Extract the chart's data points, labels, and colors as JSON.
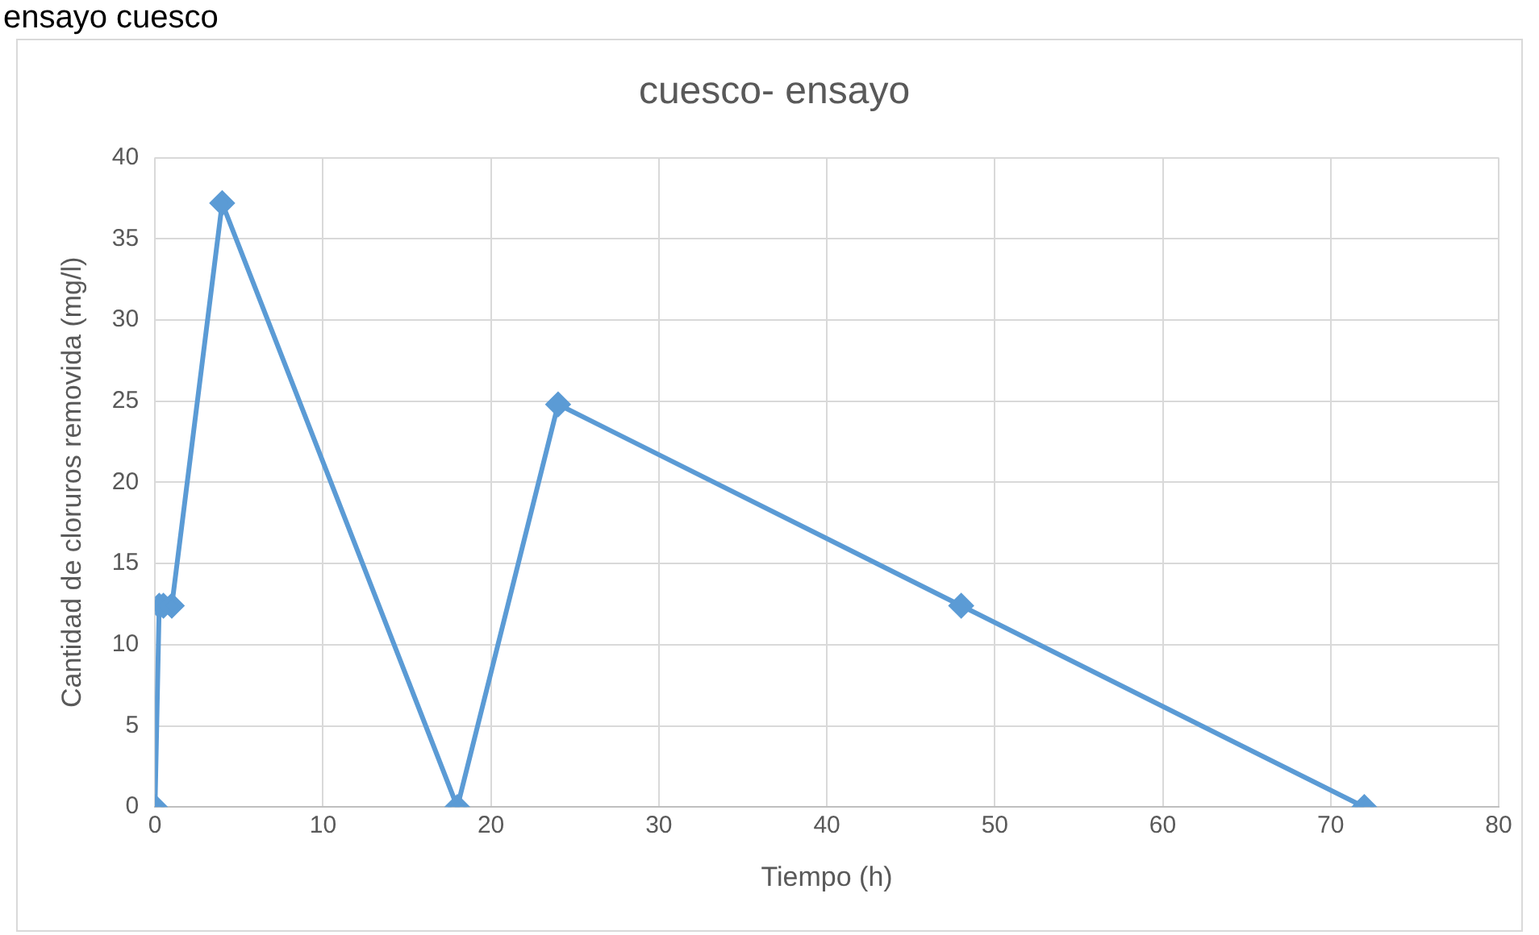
{
  "chart_data": {
    "type": "line",
    "title": "cuesco- ensayo",
    "xlabel": "Tiempo (h)",
    "ylabel": "Cantidad de cloruros removida (mg/l)",
    "annotations": [
      "ensayo cuesco"
    ],
    "series": [
      {
        "color": "#5b9bd5",
        "x": [
          0,
          0.25,
          0.5,
          1,
          4,
          18,
          24,
          48,
          72
        ],
        "values": [
          0,
          12.4,
          12.4,
          12.4,
          37.2,
          0,
          24.8,
          12.4,
          0
        ]
      }
    ],
    "xlim": [
      0,
      80
    ],
    "xticks": [
      0,
      10,
      20,
      30,
      40,
      50,
      60,
      70,
      80
    ],
    "ylim": [
      0,
      40
    ],
    "yticks": [
      0,
      5,
      10,
      15,
      20,
      25,
      30,
      35,
      40
    ],
    "grid": true,
    "legend": false,
    "marker": "diamond",
    "line_style": "solid"
  }
}
